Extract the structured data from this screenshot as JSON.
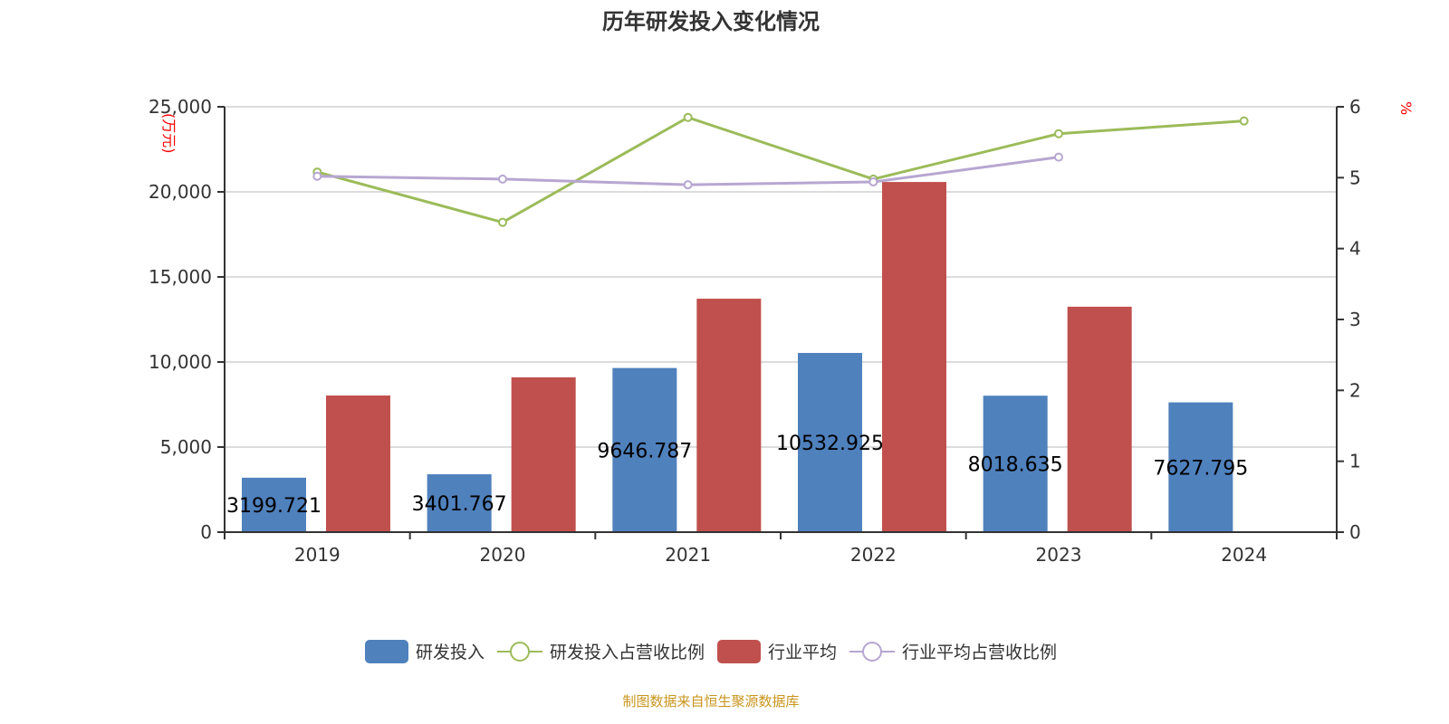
{
  "footer": "制图数据来自恒生聚源数据库",
  "colors": {
    "rd": "#4f81bd",
    "rd_ratio": "#9bbb59",
    "ind": "#c0504d",
    "ind_ratio": "#b7a6d1"
  },
  "chart_data": {
    "type": "bar+line",
    "title": "历年研发投入变化情况",
    "categories": [
      "2019",
      "2020",
      "2021",
      "2022",
      "2023",
      "2024"
    ],
    "y_left": {
      "label": "(万元)",
      "range": [
        0,
        25000
      ],
      "ticks": [
        "0",
        "5,000",
        "10,000",
        "15,000",
        "20,000",
        "25,000"
      ]
    },
    "y_right": {
      "label": "%",
      "range": [
        0,
        6
      ],
      "ticks": [
        "0",
        "1",
        "2",
        "3",
        "4",
        "5",
        "6"
      ]
    },
    "series": [
      {
        "name": "研发投入",
        "type": "bar",
        "axis": "left",
        "values": [
          3199.721,
          3401.767,
          9646.787,
          10532.925,
          8018.635,
          7627.795
        ],
        "labels": [
          "3199.721",
          "3401.767",
          "9646.787",
          "10532.925",
          "8018.635",
          "7627.795"
        ]
      },
      {
        "name": "研发投入占营收比例",
        "type": "line",
        "axis": "right",
        "values": [
          5.08,
          4.37,
          5.85,
          4.98,
          5.62,
          5.8
        ]
      },
      {
        "name": "行业平均",
        "type": "bar",
        "axis": "left",
        "values": [
          8030,
          9100,
          13720,
          20580,
          13250,
          null
        ]
      },
      {
        "name": "行业平均占营收比例",
        "type": "line",
        "axis": "right",
        "values": [
          5.02,
          4.98,
          4.9,
          4.94,
          5.29,
          null
        ]
      }
    ],
    "legend_position": "bottom",
    "grid": true
  }
}
